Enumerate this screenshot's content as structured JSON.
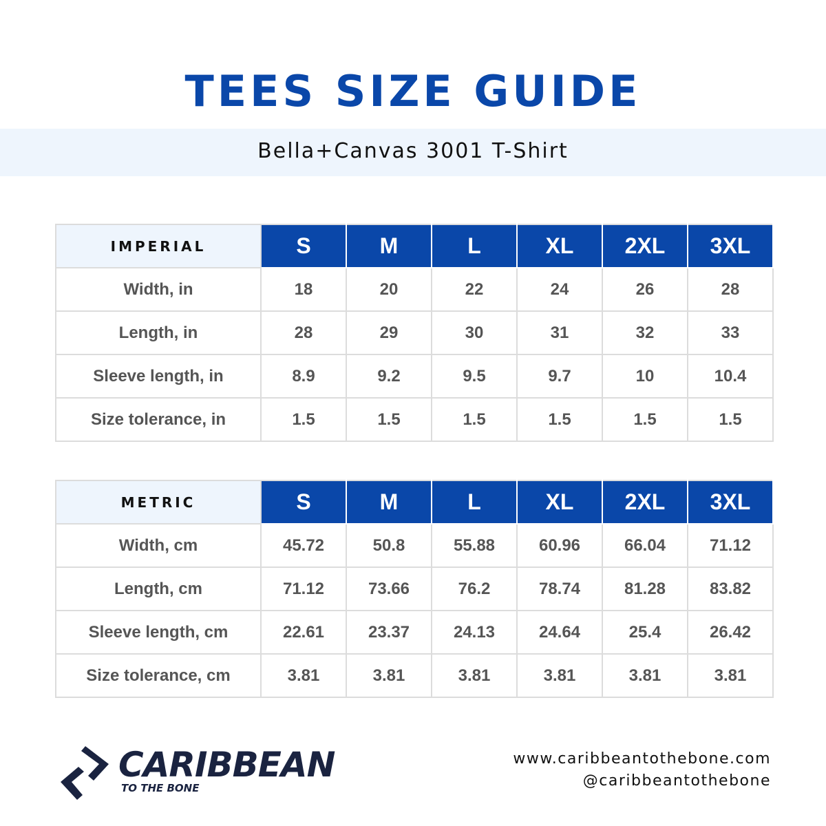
{
  "header": {
    "title": "TEES SIZE GUIDE",
    "subtitle": "Bella+Canvas 3001 T-Shirt"
  },
  "tables": [
    {
      "label": "IMPERIAL",
      "columns": [
        "S",
        "M",
        "L",
        "XL",
        "2XL",
        "3XL"
      ],
      "rows": [
        [
          "Width, in",
          "18",
          "20",
          "22",
          "24",
          "26",
          "28"
        ],
        [
          "Length, in",
          "28",
          "29",
          "30",
          "31",
          "32",
          "33"
        ],
        [
          "Sleeve length, in",
          "8.9",
          "9.2",
          "9.5",
          "9.7",
          "10",
          "10.4"
        ],
        [
          "Size tolerance, in",
          "1.5",
          "1.5",
          "1.5",
          "1.5",
          "1.5",
          "1.5"
        ]
      ]
    },
    {
      "label": "METRIC",
      "columns": [
        "S",
        "M",
        "L",
        "XL",
        "2XL",
        "3XL"
      ],
      "rows": [
        [
          "Width, cm",
          "45.72",
          "50.8",
          "55.88",
          "60.96",
          "66.04",
          "71.12"
        ],
        [
          "Length, cm",
          "71.12",
          "73.66",
          "76.2",
          "78.74",
          "81.28",
          "83.82"
        ],
        [
          "Sleeve length, cm",
          "22.61",
          "23.37",
          "24.13",
          "24.64",
          "25.4",
          "26.42"
        ],
        [
          "Size tolerance, cm",
          "3.81",
          "3.81",
          "3.81",
          "3.81",
          "3.81",
          "3.81"
        ]
      ]
    }
  ],
  "logo": {
    "name": "CARIBBEAN",
    "tagline": "TO THE BONE"
  },
  "footer": {
    "website": "www.caribbeantothebone.com",
    "handle": "@caribbeantothebone"
  }
}
